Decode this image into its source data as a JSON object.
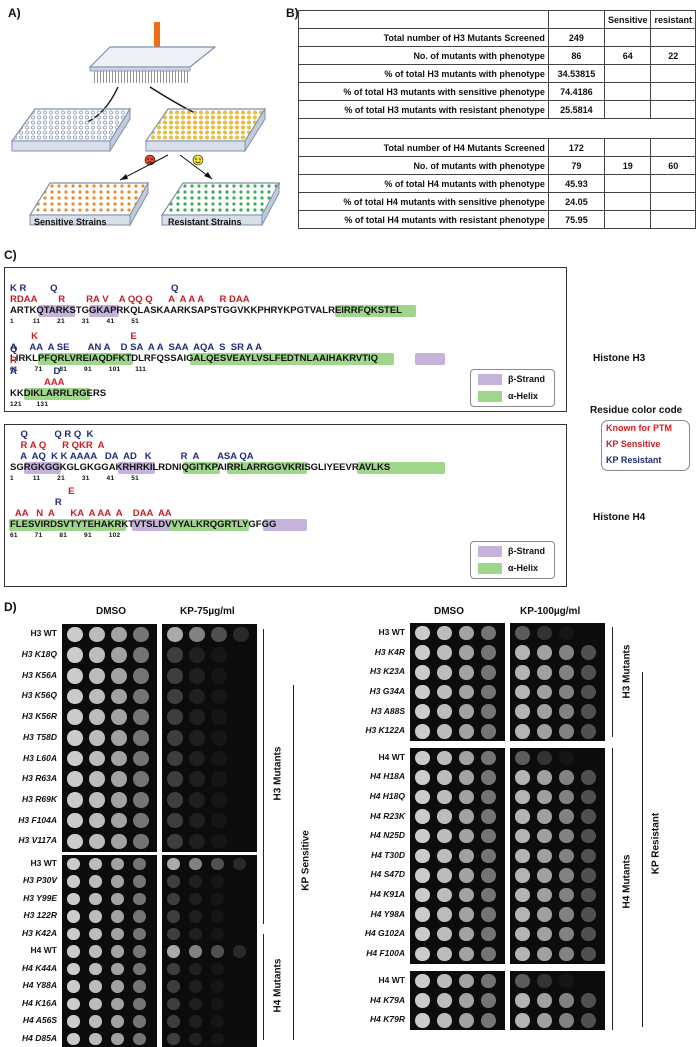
{
  "panels": {
    "A": "A)",
    "B": "B)",
    "C": "C)",
    "D": "D)"
  },
  "panelA": {
    "sensitive": "Sensitive Strains",
    "resistant": "Resistant Strains"
  },
  "tableB": {
    "header": [
      "",
      "",
      "Sensitive",
      "resistant"
    ],
    "h3": [
      [
        "Total number of H3 Mutants Screened",
        "249",
        "",
        ""
      ],
      [
        "No. of mutants with phenotype",
        "86",
        "64",
        "22"
      ],
      [
        "% of total H3 mutants with phenotype",
        "34.53815",
        "",
        ""
      ],
      [
        "% of total H3 mutants with sensitive phenotype",
        "74.4186",
        "",
        ""
      ],
      [
        "% of total H3 mutants with resistant phenotype",
        "25.5814",
        "",
        ""
      ]
    ],
    "h4": [
      [
        "Total number of H4 Mutants Screened",
        "172",
        "",
        ""
      ],
      [
        "No. of mutants with phenotype",
        "79",
        "19",
        "60"
      ],
      [
        "% of total H4 mutants with phenotype",
        "45.93",
        "",
        ""
      ],
      [
        "% of total H4 mutants with sensitive phenotype",
        "24.05",
        "",
        ""
      ],
      [
        "% of total H4 mutants with resistant phenotype",
        "75.95",
        "",
        ""
      ]
    ]
  },
  "panelC": {
    "h3_title": "Histone H3",
    "h4_title": "Histone H4",
    "strand": "β-Strand",
    "helix": "α-Helix",
    "code_title": "Residue color code",
    "code": [
      "Known for PTM",
      "KP Sensitive",
      "KP Resistant"
    ],
    "colors": {
      "ptm": "#e8191c",
      "sens": "#c81e25",
      "res": "#1f2d7a",
      "strand": "#c5b3dc",
      "helix": "#9fd68b"
    },
    "h3_rows": [
      {
        "seq": "ARTKQTARKSTGGKAPRKQLASKAARKSAPSTGGVKKPHRYKPGTVALREIRRFQKSTEL",
        "nums": "1         11        21        31        41        51",
        "top": [
          "K R         Q                                           Q",
          "RDAA        R        RA V    A QQ Q      A  A A A      R DAA",
          "1"
        ],
        "red": "",
        "hl": [
          [
            4,
            8,
            "strand"
          ],
          [
            11,
            14,
            "strand"
          ],
          [
            45,
            55,
            "helix"
          ]
        ]
      },
      {
        "seq": "LIRKLPFQRLVREIAQDFKTDLRFQSSAIGALQESVEAYLVSLFEDTNLAAIHAKRVTIQ",
        "nums": "61        71        81        91        101       111",
        "top": [
          "",
          "        K                                   E",
          "A     AA  A SE       AN A    D SA  A A  SAA  AQA  S  SR A A"
        ],
        "hl": [
          [
            4,
            16,
            "helix"
          ],
          [
            25,
            52,
            "helix"
          ],
          [
            56,
            59,
            "strand"
          ]
        ]
      },
      {
        "seq": "KKDIKLARRLRGERS",
        "nums": "121       131",
        "top": [
          "Q",
          "R",
          "A              D",
          "             AAA"
        ],
        "hl": [
          [
            2,
            10,
            "helix"
          ]
        ]
      }
    ],
    "h4_rows": [
      {
        "seq": "SGRGKGGKGLGKGGAKRHRKILRDNIQGITKPAIRRLARRGGVKRISGLIYEEVRAVLKS",
        "nums": "1         11        21        31        41        51",
        "top": [
          "    Q          Q R Q  K",
          "    R A Q      R QKR  A",
          "    A  AQ  K K AAAA   DA  AD   K           R  A       ASA QA"
        ],
        "hl": [
          [
            2,
            6,
            "strand"
          ],
          [
            15,
            19,
            "strand"
          ],
          [
            24,
            28,
            "helix"
          ],
          [
            30,
            40,
            "helix"
          ],
          [
            48,
            59,
            "helix"
          ]
        ]
      },
      {
        "seq": "FLESVIRDSVTYTEHAKRKTVTSLDVVYALKRQGRTLYGFGG",
        "nums": "61        71        81        91        102",
        "top": [
          "",
          "                      E",
          "                 R",
          "  AA   N  A      KA  A AA  A    DAA  AA"
        ],
        "hl": [
          [
            0,
            15,
            "helix"
          ],
          [
            17,
            21,
            "strand"
          ],
          [
            22,
            32,
            "helix"
          ],
          [
            35,
            40,
            "strand"
          ]
        ]
      }
    ]
  },
  "panelD": {
    "left": {
      "dmso": "DMSO",
      "kp": "KP-75µg/ml",
      "groupA": [
        "H3 WT",
        "H3 K18Q",
        "H3 K56A",
        "H3 K56Q",
        "H3 K56R",
        "H3 T58D",
        "H3 L60A",
        "H3 R63A",
        "H3 R69K",
        "H3 F104A",
        "H3 V117A"
      ],
      "groupB": [
        "H3 WT",
        "H3 P30V",
        "H3 Y99E",
        "H3 122R",
        "H3 K42A",
        "H4 WT",
        "H4 K44A",
        "H4 Y88A",
        "H4 K16A",
        "H4 A56S",
        "H4 D85A"
      ],
      "h3": "H3 Mutants",
      "h4": "H4 Mutants",
      "side": "KP Sensitive"
    },
    "right": {
      "dmso": "DMSO",
      "kp": "KP-100µg/ml",
      "groupA": [
        "H3 WT",
        "H3 K4R",
        "H3 K23A",
        "H3 G34A",
        "H3 A88S",
        "H3 K122A"
      ],
      "groupB": [
        "H4 WT",
        "H4 H18A",
        "H4 H18Q",
        "H4 R23K",
        "H4 N25D",
        "H4 T30D",
        "H4 S47D",
        "H4 K91A",
        "H4 Y98A",
        "H4 G102A",
        "H4 F100A"
      ],
      "groupC": [
        "H4 WT",
        "H4 K79A",
        "H4 K79R"
      ],
      "h3": "H3 Mutants",
      "h4": "H4 Mutants",
      "side": "KP Resistant"
    }
  }
}
